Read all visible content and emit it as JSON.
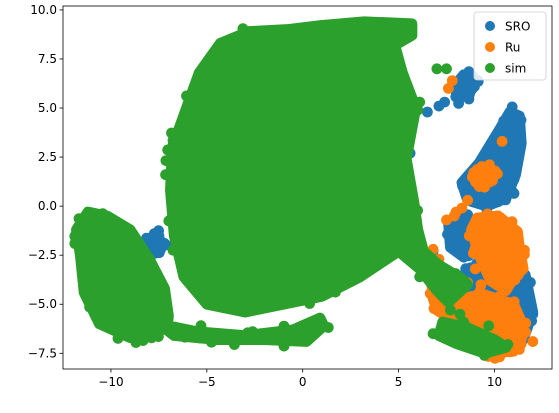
{
  "chart_data": {
    "type": "scatter",
    "xlim": [
      -12.5,
      13
    ],
    "ylim": [
      -8.3,
      10.2
    ],
    "x_ticks": [
      -10,
      -5,
      0,
      5,
      10
    ],
    "y_ticks": [
      -7.5,
      -5.0,
      -2.5,
      0.0,
      2.5,
      5.0,
      7.5,
      10.0
    ],
    "x_tick_labels": [
      "−10",
      "−5",
      "0",
      "5",
      "10"
    ],
    "y_tick_labels": [
      "−7.5",
      "−5.0",
      "−2.5",
      "0.0",
      "2.5",
      "5.0",
      "7.5",
      "10.0"
    ],
    "grid": false,
    "legend_position": "top-right",
    "series": [
      {
        "name": "SRO",
        "color": "#1f77b4",
        "regions": [
          {
            "polygon": [
              [
                8.3,
                1.2
              ],
              [
                9.2,
                2.2
              ],
              [
                10.2,
                3.8
              ],
              [
                10.8,
                4.8
              ],
              [
                11.3,
                4.6
              ],
              [
                11.4,
                3.2
              ],
              [
                11.1,
                1.6
              ],
              [
                10.6,
                0.4
              ],
              [
                9.6,
                0.0
              ],
              [
                8.6,
                0.3
              ]
            ]
          },
          {
            "polygon": [
              [
                7.6,
                -0.8
              ],
              [
                8.6,
                -0.5
              ],
              [
                9.0,
                -1.6
              ],
              [
                8.4,
                -2.6
              ],
              [
                7.7,
                -2.1
              ]
            ]
          },
          {
            "polygon": [
              [
                8.2,
                -3.6
              ],
              [
                9.6,
                -3.0
              ],
              [
                11.6,
                -3.5
              ],
              [
                12.0,
                -5.4
              ],
              [
                11.5,
                -6.8
              ],
              [
                9.8,
                -7.0
              ],
              [
                8.3,
                -6.0
              ],
              [
                8.0,
                -4.5
              ]
            ]
          },
          {
            "polygon": [
              [
                7.9,
                6.1
              ],
              [
                8.4,
                6.7
              ],
              [
                8.9,
                6.4
              ],
              [
                8.7,
                5.7
              ],
              [
                8.1,
                5.5
              ]
            ]
          },
          {
            "polygon": [
              [
                -7.9,
                -1.6
              ],
              [
                -7.5,
                -1.5
              ],
              [
                -7.4,
                -2.2
              ],
              [
                -7.9,
                -2.2
              ]
            ]
          }
        ],
        "points": [
          [
            5.8,
            -2.5
          ],
          [
            6.8,
            -2.3
          ],
          [
            7.1,
            5.1
          ],
          [
            7.4,
            5.3
          ],
          [
            6.5,
            4.8
          ],
          [
            5.6,
            2.7
          ],
          [
            11.3,
            -5.6
          ],
          [
            12.0,
            -5.5
          ],
          [
            -10.3,
            -0.7
          ],
          [
            -10.9,
            -0.6
          ],
          [
            -8.5,
            -2.0
          ]
        ]
      },
      {
        "name": "Ru",
        "color": "#ff7f0e",
        "regions": [
          {
            "polygon": [
              [
                9.1,
                -0.6
              ],
              [
                10.2,
                -0.5
              ],
              [
                11.2,
                -1.3
              ],
              [
                11.4,
                -3.0
              ],
              [
                10.6,
                -4.3
              ],
              [
                9.8,
                -3.8
              ],
              [
                9.2,
                -2.5
              ],
              [
                8.8,
                -1.2
              ]
            ]
          },
          {
            "polygon": [
              [
                8.3,
                -4.7
              ],
              [
                9.4,
                -4.5
              ],
              [
                11.0,
                -5.0
              ],
              [
                11.5,
                -6.1
              ],
              [
                11.0,
                -7.4
              ],
              [
                9.6,
                -7.5
              ],
              [
                8.6,
                -6.6
              ]
            ]
          },
          {
            "polygon": [
              [
                6.7,
                -4.4
              ],
              [
                7.7,
                -3.9
              ],
              [
                8.3,
                -4.9
              ],
              [
                7.8,
                -5.8
              ],
              [
                7.0,
                -5.3
              ]
            ]
          },
          {
            "polygon": [
              [
                10.2,
                -1.6
              ],
              [
                11.2,
                -1.5
              ],
              [
                11.5,
                -3.2
              ],
              [
                10.7,
                -3.9
              ],
              [
                10.2,
                -2.8
              ]
            ]
          },
          {
            "polygon": [
              [
                9.0,
                1.7
              ],
              [
                9.8,
                1.9
              ],
              [
                9.9,
                1.3
              ],
              [
                9.2,
                1.0
              ]
            ]
          }
        ],
        "points": [
          [
            7.6,
            6.0
          ],
          [
            7.8,
            6.4
          ],
          [
            10.4,
            3.3
          ],
          [
            8.3,
            -0.1
          ],
          [
            8.0,
            -0.3
          ],
          [
            7.5,
            -0.7
          ],
          [
            7.9,
            -0.5
          ],
          [
            8.6,
            0.3
          ],
          [
            9.5,
            1.4
          ],
          [
            6.8,
            -2.2
          ],
          [
            6.6,
            -2.6
          ],
          [
            7.1,
            -2.7
          ],
          [
            12.0,
            -6.9
          ],
          [
            11.3,
            -7.3
          ],
          [
            9.3,
            -4.0
          ],
          [
            8.6,
            -3.9
          ],
          [
            9.0,
            -3.2
          ],
          [
            8.9,
            -2.4
          ]
        ]
      },
      {
        "name": "sim",
        "color": "#2ca02c",
        "regions": [
          {
            "polygon": [
              [
                -6.8,
                3.0
              ],
              [
                -5.4,
                6.8
              ],
              [
                -4.3,
                8.3
              ],
              [
                -2.8,
                8.9
              ],
              [
                -0.8,
                9.0
              ],
              [
                0.9,
                9.2
              ],
              [
                3.2,
                9.4
              ],
              [
                5.7,
                9.3
              ],
              [
                5.7,
                8.7
              ],
              [
                4.8,
                8.2
              ],
              [
                5.2,
                6.8
              ],
              [
                5.9,
                5.0
              ],
              [
                5.4,
                2.4
              ],
              [
                5.8,
                0.2
              ],
              [
                6.0,
                -1.2
              ],
              [
                6.3,
                -2.3
              ],
              [
                7.1,
                -3.0
              ],
              [
                8.3,
                -3.7
              ],
              [
                8.6,
                -4.0
              ],
              [
                7.6,
                -4.9
              ],
              [
                7.0,
                -4.3
              ],
              [
                6.1,
                -3.2
              ],
              [
                5.0,
                -2.3
              ],
              [
                3.0,
                -3.6
              ],
              [
                1.0,
                -4.6
              ],
              [
                -1.0,
                -5.0
              ],
              [
                -3.0,
                -5.4
              ],
              [
                -5.0,
                -5.0
              ],
              [
                -6.2,
                -3.6
              ],
              [
                -6.7,
                -1.5
              ],
              [
                -6.9,
                0.8
              ]
            ]
          },
          {
            "polygon": [
              [
                -11.2,
                -0.3
              ],
              [
                -10.2,
                -0.5
              ],
              [
                -9.0,
                -1.2
              ],
              [
                -8.0,
                -2.7
              ],
              [
                -7.2,
                -4.2
              ],
              [
                -7.0,
                -5.6
              ],
              [
                -7.6,
                -6.6
              ],
              [
                -9.0,
                -6.7
              ],
              [
                -10.6,
                -6.0
              ],
              [
                -11.4,
                -4.4
              ],
              [
                -11.6,
                -2.5
              ],
              [
                -11.8,
                -1.2
              ]
            ]
          },
          {
            "polygon": [
              [
                -7.5,
                -6.0
              ],
              [
                -5.5,
                -6.4
              ],
              [
                -3.0,
                -6.6
              ],
              [
                -0.5,
                -6.3
              ],
              [
                0.9,
                -5.7
              ],
              [
                1.1,
                -6.1
              ],
              [
                0.2,
                -6.9
              ],
              [
                -2.0,
                -6.8
              ],
              [
                -4.5,
                -6.8
              ],
              [
                -6.7,
                -6.6
              ]
            ]
          },
          {
            "polygon": [
              [
                7.3,
                -5.9
              ],
              [
                8.6,
                -6.2
              ],
              [
                10.0,
                -6.8
              ],
              [
                10.6,
                -7.2
              ],
              [
                9.5,
                -7.5
              ],
              [
                8.0,
                -7.0
              ],
              [
                7.1,
                -6.6
              ]
            ]
          }
        ],
        "points": [
          [
            5.0,
            8.6
          ],
          [
            4.9,
            8.3
          ],
          [
            6.1,
            5.3
          ],
          [
            6.0,
            4.9
          ],
          [
            7.5,
            7.0
          ],
          [
            7.0,
            7.0
          ],
          [
            6.1,
            -3.6
          ],
          [
            8.2,
            -5.5
          ],
          [
            7.7,
            -5.3
          ],
          [
            8.2,
            -6.7
          ],
          [
            6.8,
            -6.5
          ],
          [
            9.7,
            -6.1
          ]
        ]
      }
    ]
  }
}
